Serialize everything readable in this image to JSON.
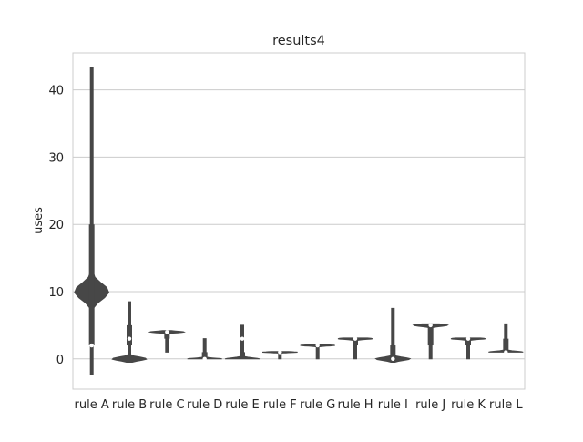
{
  "chart_data": {
    "type": "violin",
    "title": "results4",
    "xlabel": "",
    "ylabel": "uses",
    "ylim": [
      -4.5,
      45.5
    ],
    "yticks": [
      0,
      10,
      20,
      30,
      40
    ],
    "ytick_labels": [
      "0",
      "10",
      "20",
      "30",
      "40"
    ],
    "grid": "horizontal",
    "categories": [
      "rule A",
      "rule B",
      "rule C",
      "rule D",
      "rule E",
      "rule F",
      "rule G",
      "rule H",
      "rule I",
      "rule J",
      "rule K",
      "rule L"
    ],
    "median": [
      2,
      3,
      4,
      0,
      3,
      1,
      2,
      3,
      0,
      5,
      3,
      1
    ],
    "q1": [
      2,
      2,
      3,
      0,
      0,
      1,
      2,
      2,
      0,
      2,
      2,
      1
    ],
    "q3": [
      20,
      5,
      4,
      1,
      1,
      1,
      2,
      3,
      2,
      5,
      3,
      3
    ],
    "min": [
      -2.3,
      -0.5,
      1,
      0,
      0,
      0,
      0,
      0,
      -0.5,
      0,
      0,
      1
    ],
    "max": [
      43.3,
      8.5,
      4.2,
      3,
      5,
      1.1,
      2.1,
      3.1,
      7.5,
      5.2,
      3.1,
      5.2
    ],
    "mode": [
      10,
      0,
      4,
      0,
      0,
      1,
      2,
      3,
      0,
      5,
      3,
      1
    ]
  },
  "style": {
    "axes_edge": "#cccccc",
    "grid_color": "#cccccc",
    "violin_color": "#474747",
    "median_color": "#ffffff",
    "text_color": "#262626"
  }
}
